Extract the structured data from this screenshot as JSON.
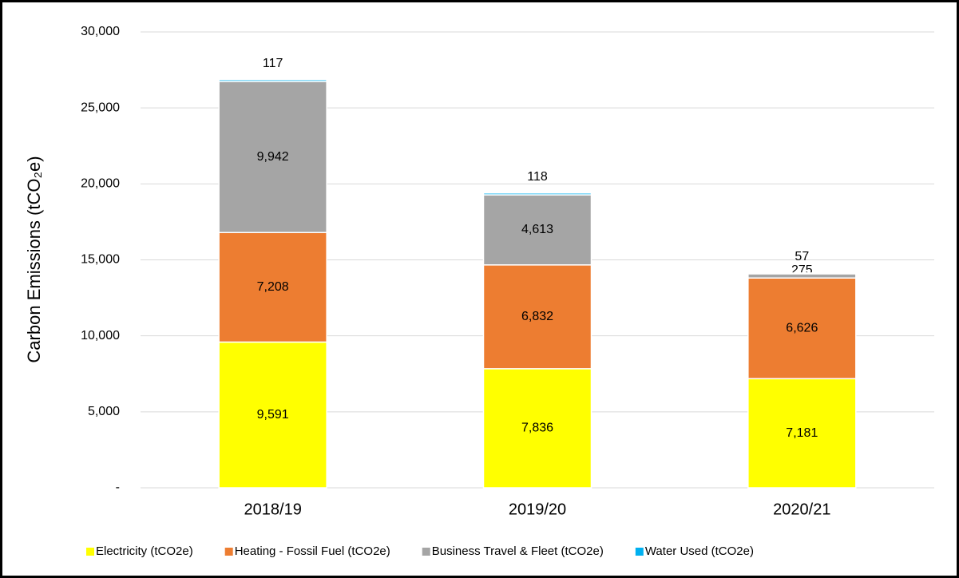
{
  "chart_data": {
    "type": "stacked_bar",
    "y_label": "Carbon Emissions (tCO₂e)",
    "categories": [
      "2018/19",
      "2019/20",
      "2020/21"
    ],
    "series": [
      {
        "name": "Electricity (tCO2e)",
        "color": "#ffff00",
        "values": [
          9591,
          7836,
          7181
        ],
        "value_labels": [
          "9,591",
          "7,836",
          "7,181"
        ]
      },
      {
        "name": "Heating - Fossil Fuel (tCO2e)",
        "color": "#ed7d31",
        "values": [
          7208,
          6832,
          6626
        ],
        "value_labels": [
          "7,208",
          "6,832",
          "6,626"
        ]
      },
      {
        "name": "Business Travel & Fleet (tCO2e)",
        "color": "#a5a5a5",
        "values": [
          9942,
          4613,
          275
        ],
        "value_labels": [
          "9,942",
          "4,613",
          "275"
        ]
      },
      {
        "name": "Water Used (tCO2e)",
        "color": "#00b0f0",
        "values": [
          117,
          118,
          57
        ],
        "value_labels": [
          "117",
          "118",
          "57"
        ]
      }
    ],
    "ylim": [
      0,
      30000
    ],
    "yticks": [
      {
        "value": 0,
        "label": "-"
      },
      {
        "value": 5000,
        "label": "5,000"
      },
      {
        "value": 10000,
        "label": "10,000"
      },
      {
        "value": 15000,
        "label": "15,000"
      },
      {
        "value": 20000,
        "label": "20,000"
      },
      {
        "value": 25000,
        "label": "25,000"
      },
      {
        "value": 30000,
        "label": "30,000"
      }
    ],
    "grid": true,
    "legend": "bottom"
  }
}
